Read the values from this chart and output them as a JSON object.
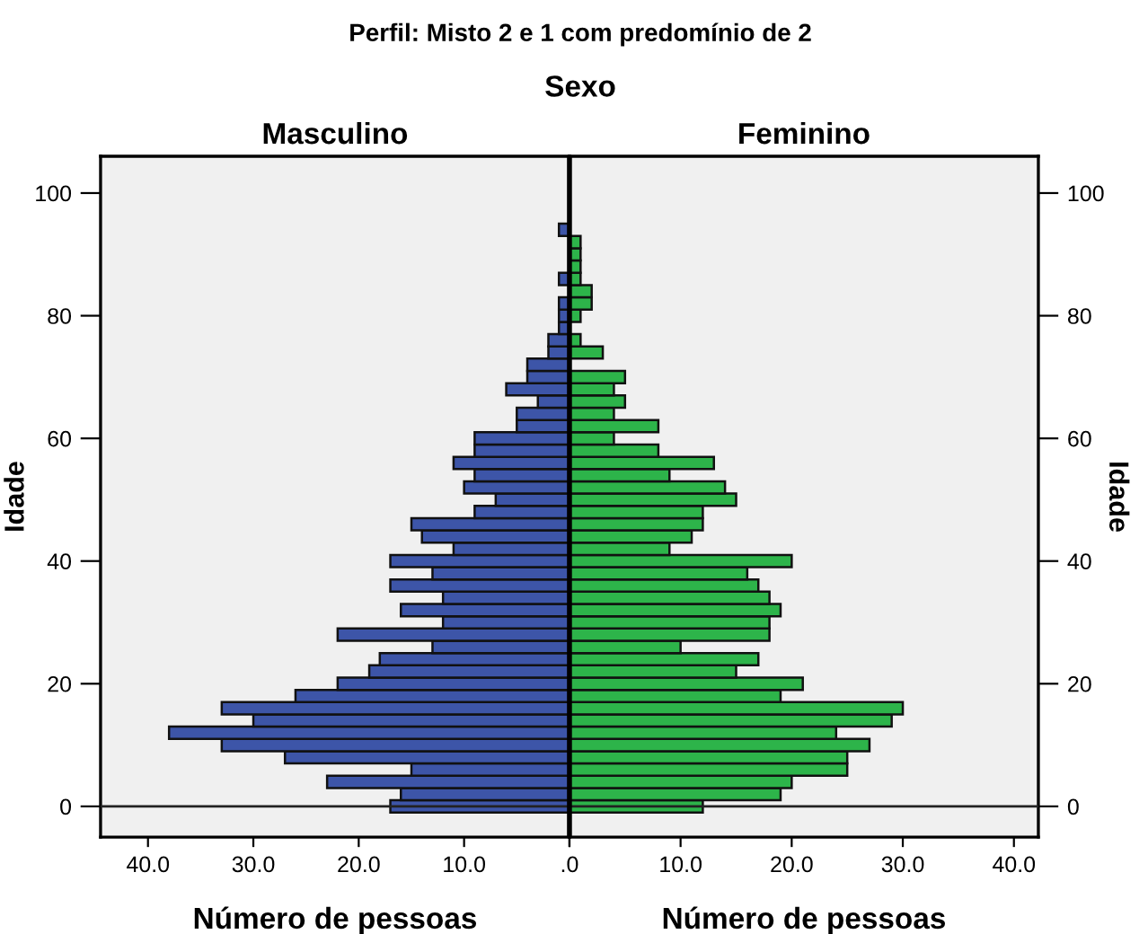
{
  "chart_data": [
    {
      "type": "bar",
      "orientation": "horizontal",
      "title": "Masculino",
      "xlabel": "Número de pessoas",
      "ylabel": "Idade",
      "annotations": [
        "Perfil: Misto 2 e 1 com predomínio de 2",
        "Sexo"
      ],
      "x": [
        0,
        2,
        4,
        6,
        8,
        10,
        12,
        14,
        16,
        18,
        20,
        22,
        24,
        26,
        28,
        30,
        32,
        34,
        36,
        38,
        40,
        42,
        44,
        46,
        48,
        50,
        52,
        54,
        56,
        58,
        60,
        62,
        64,
        66,
        68,
        70,
        72,
        74,
        76,
        78,
        80,
        82,
        84,
        86,
        88,
        90,
        92,
        94
      ],
      "series": [
        {
          "color": "#3d55a8",
          "values": [
            17,
            16,
            23,
            15,
            27,
            33,
            38,
            30,
            33,
            26,
            22,
            19,
            18,
            13,
            22,
            12,
            16,
            12,
            17,
            13,
            17,
            11,
            14,
            15,
            9,
            7,
            10,
            9,
            11,
            9,
            9,
            5,
            5,
            3,
            6,
            4,
            4,
            2,
            2,
            1,
            1,
            1,
            null,
            1,
            null,
            null,
            null,
            1
          ]
        }
      ],
      "xlim": [
        44.5,
        0
      ],
      "xticks": [
        {
          "value": 40,
          "label": "40.0"
        },
        {
          "value": 30,
          "label": "30.0"
        },
        {
          "value": 20,
          "label": "20.0"
        },
        {
          "value": 10,
          "label": "10.0"
        },
        {
          "value": 0,
          "label": ".0"
        }
      ],
      "ylim": [
        -5,
        106
      ],
      "yticks": [
        0,
        20,
        40,
        60,
        80,
        100
      ],
      "ref_lines": [
        {
          "axis": "y",
          "value": 0
        }
      ],
      "grid": false,
      "legend": false
    },
    {
      "type": "bar",
      "orientation": "horizontal",
      "title": "Feminino",
      "xlabel": "Número de pessoas",
      "ylabel": "Idade",
      "x": [
        0,
        2,
        4,
        6,
        8,
        10,
        12,
        14,
        16,
        18,
        20,
        22,
        24,
        26,
        28,
        30,
        32,
        34,
        36,
        38,
        40,
        42,
        44,
        46,
        48,
        50,
        52,
        54,
        56,
        58,
        60,
        62,
        64,
        66,
        68,
        70,
        72,
        74,
        76,
        78,
        80,
        82,
        84,
        86,
        88,
        90,
        92
      ],
      "series": [
        {
          "color": "#2db44a",
          "values": [
            12,
            19,
            20,
            25,
            25,
            27,
            24,
            29,
            30,
            19,
            21,
            15,
            17,
            10,
            18,
            18,
            19,
            18,
            17,
            16,
            20,
            9,
            11,
            12,
            12,
            15,
            14,
            9,
            13,
            8,
            4,
            8,
            4,
            5,
            4,
            5,
            null,
            3,
            1,
            null,
            1,
            2,
            2,
            1,
            1,
            1,
            1
          ]
        }
      ],
      "xlim": [
        0,
        42.2
      ],
      "xticks": [
        {
          "value": 0,
          "label": null
        },
        {
          "value": 10,
          "label": "10.0"
        },
        {
          "value": 20,
          "label": "20.0"
        },
        {
          "value": 30,
          "label": "30.0"
        },
        {
          "value": 40,
          "label": "40.0"
        }
      ],
      "ylim": [
        -5,
        106
      ],
      "yticks": [
        0,
        20,
        40,
        60,
        80,
        100
      ],
      "ref_lines": [
        {
          "axis": "y",
          "value": 0
        }
      ],
      "grid": false,
      "legend": false
    }
  ]
}
